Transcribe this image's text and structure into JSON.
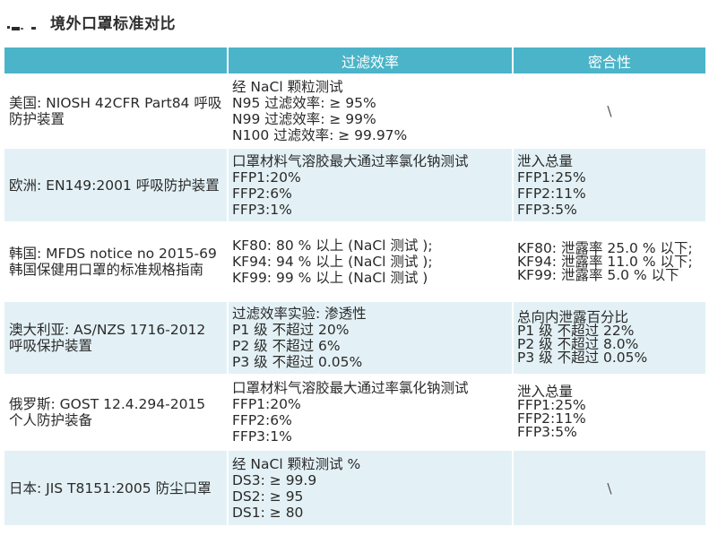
{
  "page": {
    "title": "境外口罩标准对比"
  },
  "table": {
    "headers": [
      "",
      "过滤效率",
      "密合性"
    ],
    "rows": [
      {
        "country": "美国: NIOSH 42CFR Part84 呼吸防护装置",
        "efficiency": [
          "经 NaCl 颗粒测试",
          "N95 过滤效率: ≥ 95%",
          "N99 过滤效率: ≥ 99%",
          "N100 过滤效率: ≥ 99.97%"
        ],
        "fit": [
          "\\"
        ]
      },
      {
        "country": "欧洲: EN149:2001 呼吸防护装置",
        "efficiency": [
          "口罩材料气溶胶最大通过率氯化钠测试",
          "FFP1:20%",
          "FFP2:6%",
          "FFP3:1%"
        ],
        "fit": [
          "泄入总量",
          "FFP1:25%",
          "FFP2:11%",
          "FFP3:5%"
        ]
      },
      {
        "country": "韩国: MFDS notice no 2015-69 韩国保健用口罩的标准规格指南",
        "efficiency": [
          "KF80: 80 % 以上 (NaCl 测试 );",
          "KF94: 94 % 以上 (NaCl 测试 );",
          "KF99: 99 % 以上 (NaCl 测试 )"
        ],
        "fit": [
          "KF80: 泄露率 25.0 % 以下;",
          "KF94: 泄露率 11.0 % 以下;",
          "KF99: 泄露率 5.0 % 以下"
        ]
      },
      {
        "country": "澳大利亚: AS/NZS 1716-2012 呼吸保护装置",
        "efficiency": [
          "过滤效率实验: 渗透性",
          "P1 级 不超过 20%",
          "P2 级 不超过 6%",
          "P3 级 不超过 0.05%"
        ],
        "fit": [
          "总向内泄露百分比",
          "P1 级 不超过 22%",
          "P2 级 不超过 8.0%",
          "P3 级 不超过 0.05%"
        ]
      },
      {
        "country": "俄罗斯: GOST 12.4.294-2015 个人防护装备",
        "efficiency": [
          "口罩材料气溶胶最大通过率氯化钠测试",
          "FFP1:20%",
          "FFP2:6%",
          "FFP3:1%"
        ],
        "fit": [
          "泄入总量",
          "FFP1:25%",
          "FFP2:11%",
          "FFP3:5%"
        ]
      },
      {
        "country": "日本: JIS T8151:2005 防尘口罩",
        "efficiency": [
          "经 NaCl 颗粒测试 %",
          "DS3: ≥ 99.9",
          "DS2: ≥ 95",
          "DS1: ≥ 80"
        ],
        "fit": [
          "\\"
        ]
      }
    ]
  }
}
